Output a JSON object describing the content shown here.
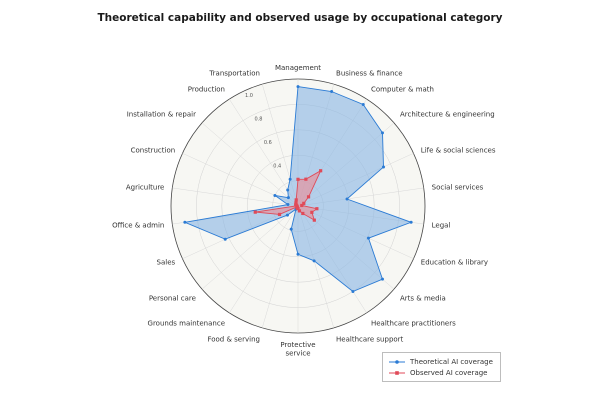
{
  "chart_data": {
    "type": "radar",
    "title": "Theoretical capability and observed usage by occupational category",
    "categories": [
      "Management",
      "Business & finance",
      "Computer & math",
      "Architecture & engineering",
      "Life & social sciences",
      "Social services",
      "Legal",
      "Education & library",
      "Arts & media",
      "Healthcare practitioners",
      "Healthcare support",
      "Protective\nservice",
      "Food & serving",
      "Grounds maintenance",
      "Personal care",
      "Sales",
      "Office & admin",
      "Agriculture",
      "Construction",
      "Installation & repair",
      "Production",
      "Transportation"
    ],
    "series": [
      {
        "name": "Theoretical AI coverage",
        "color": "#2b7bd4",
        "fill": "#8bb6e4",
        "values": [
          0.94,
          0.94,
          0.95,
          0.88,
          0.74,
          0.39,
          0.9,
          0.61,
          0.88,
          0.8,
          0.45,
          0.38,
          0.19,
          0.03,
          0.11,
          0.63,
          0.9,
          0.08,
          0.2,
          0.1,
          0.15,
          0.22
        ]
      },
      {
        "name": "Observed AI coverage",
        "color": "#e04a58",
        "fill": "#ec8d96",
        "values": [
          0.21,
          0.22,
          0.33,
          0.11,
          0.05,
          0.03,
          0.15,
          0.12,
          0.17,
          0.07,
          0.04,
          0.02,
          0.02,
          0.01,
          0.01,
          0.16,
          0.34,
          0.01,
          0.02,
          0.02,
          0.03,
          0.05
        ]
      }
    ],
    "rlim": [
      0,
      1.0
    ],
    "ticks": [
      0.2,
      0.4,
      0.6,
      0.8,
      1.0
    ],
    "tick_labels": [
      "0.4",
      "0.6",
      "0.8",
      "1.0"
    ],
    "grid": true,
    "legend": "bottom-right"
  },
  "legend": {
    "items": [
      {
        "label": "Theoretical AI coverage",
        "color": "#2b7bd4",
        "marker": "circle"
      },
      {
        "label": "Observed AI coverage",
        "color": "#e04a58",
        "marker": "square"
      }
    ]
  }
}
